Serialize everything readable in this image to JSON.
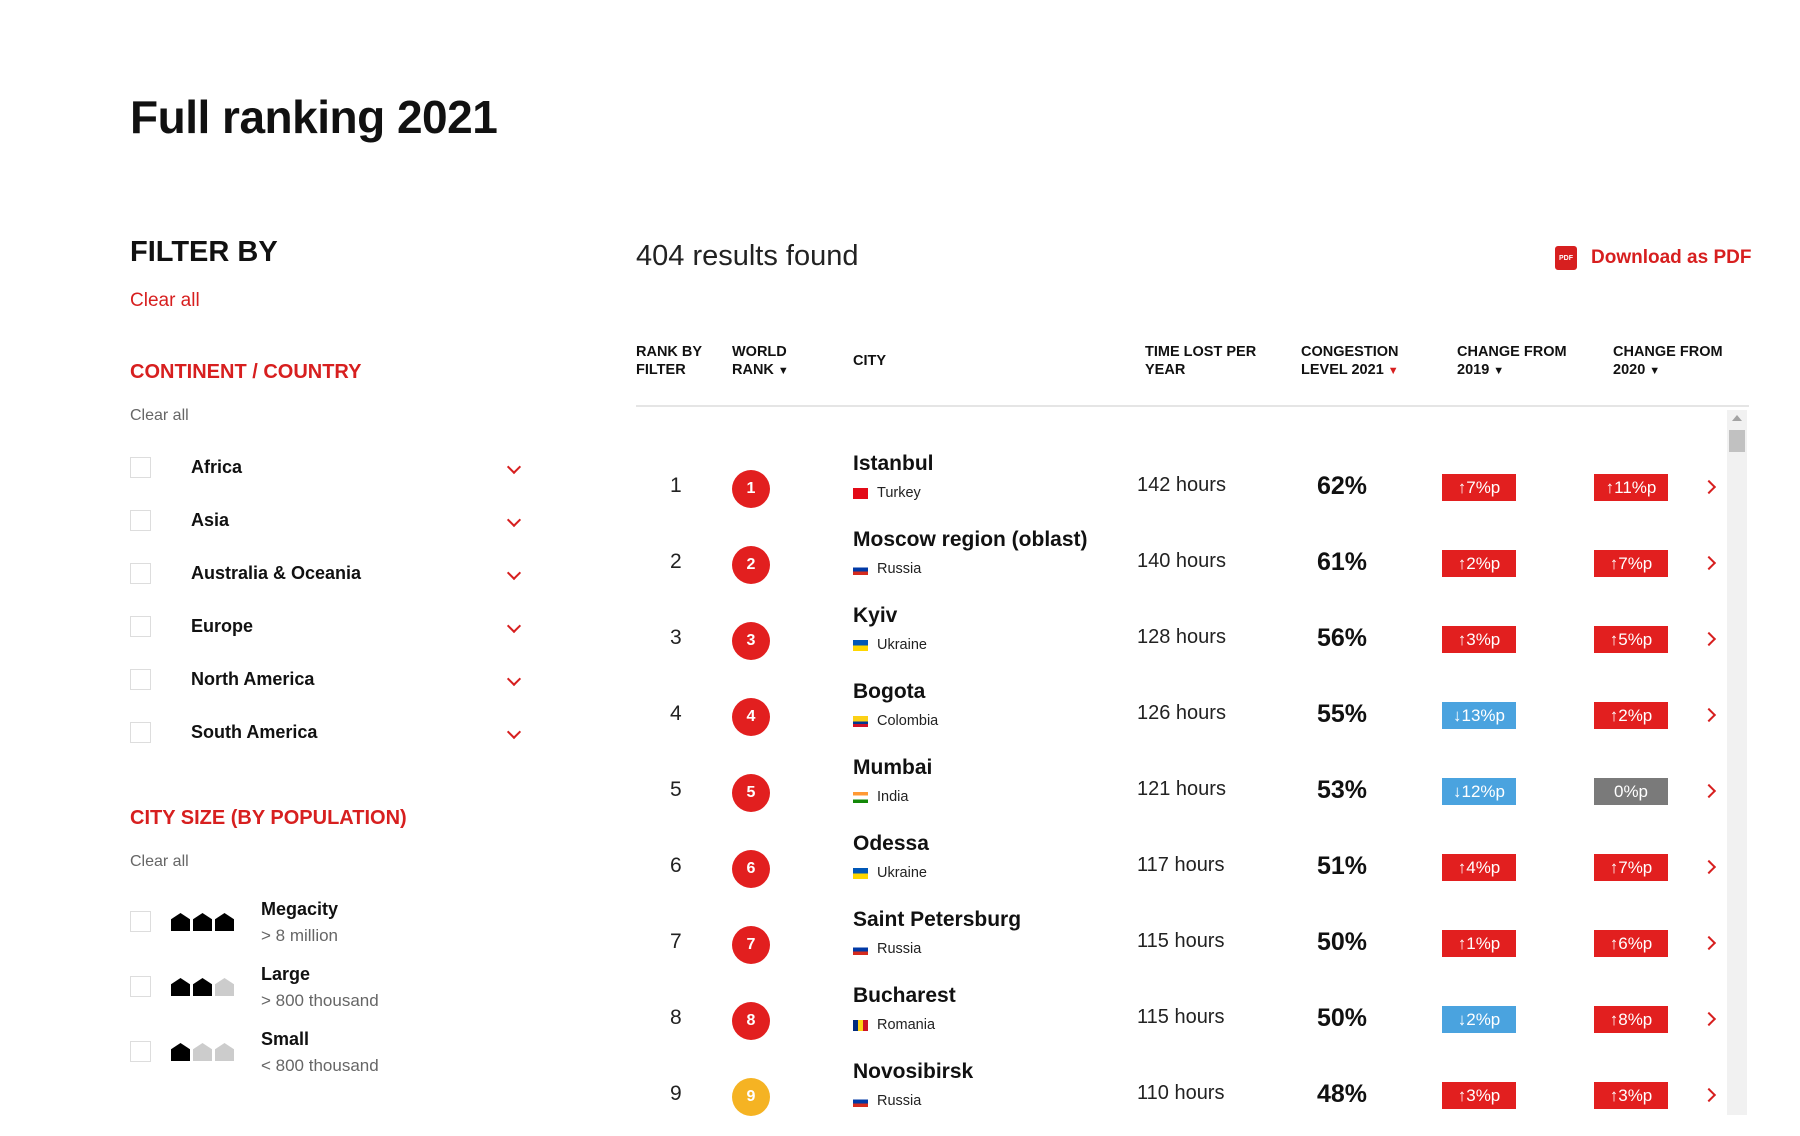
{
  "page_title": "Full ranking 2021",
  "filters": {
    "heading": "FILTER BY",
    "clear_all": "Clear all",
    "continent": {
      "heading": "CONTINENT / COUNTRY",
      "clear_all": "Clear all",
      "items": [
        "Africa",
        "Asia",
        "Australia & Oceania",
        "Europe",
        "North America",
        "South America"
      ]
    },
    "city_size": {
      "heading": "CITY SIZE (BY POPULATION)",
      "clear_all": "Clear all",
      "items": [
        {
          "name": "Megacity",
          "desc": "> 8 million",
          "level": 3
        },
        {
          "name": "Large",
          "desc": "> 800 thousand",
          "level": 2
        },
        {
          "name": "Small",
          "desc": "< 800 thousand",
          "level": 1
        }
      ]
    }
  },
  "results": {
    "count_text": "404 results found",
    "download_label": "Download as PDF",
    "pdf_icon_text": "PDF"
  },
  "table": {
    "headers": {
      "rank_filter": [
        "RANK BY",
        "FILTER"
      ],
      "world_rank": [
        "WORLD",
        "RANK"
      ],
      "city": "CITY",
      "time_lost": [
        "TIME LOST PER",
        "YEAR"
      ],
      "congestion": [
        "CONGESTION",
        "LEVEL 2021"
      ],
      "change2019": [
        "CHANGE FROM",
        "2019"
      ],
      "change2020": [
        "CHANGE FROM",
        "2020"
      ],
      "sort_arrow": "▼"
    },
    "rows": [
      {
        "rank": "1",
        "world_rank": "1",
        "city": "Istanbul",
        "country": "Turkey",
        "time": "142 hours",
        "congestion": "62%",
        "c2019": "↑7%p",
        "c2019_dir": "up",
        "c2020": "↑11%p",
        "c2020_dir": "up"
      },
      {
        "rank": "2",
        "world_rank": "2",
        "city": "Moscow region (oblast)",
        "country": "Russia",
        "time": "140 hours",
        "congestion": "61%",
        "c2019": "↑2%p",
        "c2019_dir": "up",
        "c2020": "↑7%p",
        "c2020_dir": "up"
      },
      {
        "rank": "3",
        "world_rank": "3",
        "city": "Kyiv",
        "country": "Ukraine",
        "time": "128 hours",
        "congestion": "56%",
        "c2019": "↑3%p",
        "c2019_dir": "up",
        "c2020": "↑5%p",
        "c2020_dir": "up"
      },
      {
        "rank": "4",
        "world_rank": "4",
        "city": "Bogota",
        "country": "Colombia",
        "time": "126 hours",
        "congestion": "55%",
        "c2019": "↓13%p",
        "c2019_dir": "down",
        "c2020": "↑2%p",
        "c2020_dir": "up"
      },
      {
        "rank": "5",
        "world_rank": "5",
        "city": "Mumbai",
        "country": "India",
        "time": "121 hours",
        "congestion": "53%",
        "c2019": "↓12%p",
        "c2019_dir": "down",
        "c2020": "0%p",
        "c2020_dir": "flat"
      },
      {
        "rank": "6",
        "world_rank": "6",
        "city": "Odessa",
        "country": "Ukraine",
        "time": "117 hours",
        "congestion": "51%",
        "c2019": "↑4%p",
        "c2019_dir": "up",
        "c2020": "↑7%p",
        "c2020_dir": "up"
      },
      {
        "rank": "7",
        "world_rank": "7",
        "city": "Saint Petersburg",
        "country": "Russia",
        "time": "115 hours",
        "congestion": "50%",
        "c2019": "↑1%p",
        "c2019_dir": "up",
        "c2020": "↑6%p",
        "c2020_dir": "up"
      },
      {
        "rank": "8",
        "world_rank": "8",
        "city": "Bucharest",
        "country": "Romania",
        "time": "115 hours",
        "congestion": "50%",
        "c2019": "↓2%p",
        "c2019_dir": "down",
        "c2020": "↑8%p",
        "c2020_dir": "up"
      },
      {
        "rank": "9",
        "world_rank": "9",
        "city": "Novosibirsk",
        "country": "Russia",
        "time": "110 hours",
        "congestion": "48%",
        "c2019": "↑3%p",
        "c2019_dir": "up",
        "c2020": "↑3%p",
        "c2020_dir": "up"
      }
    ]
  },
  "colors": {
    "accent": "#d71f1f",
    "up": "#e21f1f",
    "down": "#4aa3df",
    "flat": "#7a7a7a",
    "rank_top": "#e21f1f",
    "rank_9": "#f5b323"
  }
}
